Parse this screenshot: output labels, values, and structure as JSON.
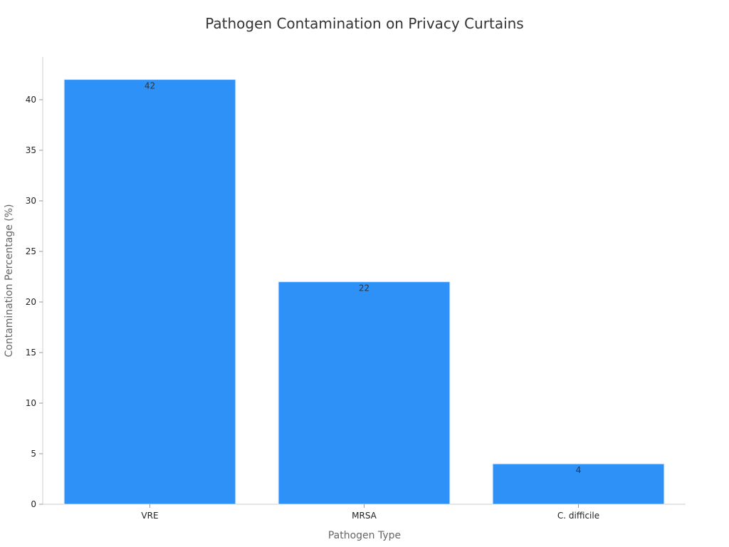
{
  "chart_data": {
    "type": "bar",
    "title": "Pathogen Contamination on Privacy Curtains",
    "xlabel": "Pathogen Type",
    "ylabel": "Contamination Percentage (%)",
    "categories": [
      "VRE",
      "MRSA",
      "C. difficile"
    ],
    "values": [
      42,
      22,
      4
    ],
    "data_labels": [
      "42",
      "22",
      "4"
    ],
    "ylim": [
      0,
      44
    ],
    "yticks": [
      0,
      5,
      10,
      15,
      20,
      25,
      30,
      35,
      40
    ],
    "grid": false,
    "legend": "none",
    "bar_color": "#2e91f8"
  }
}
